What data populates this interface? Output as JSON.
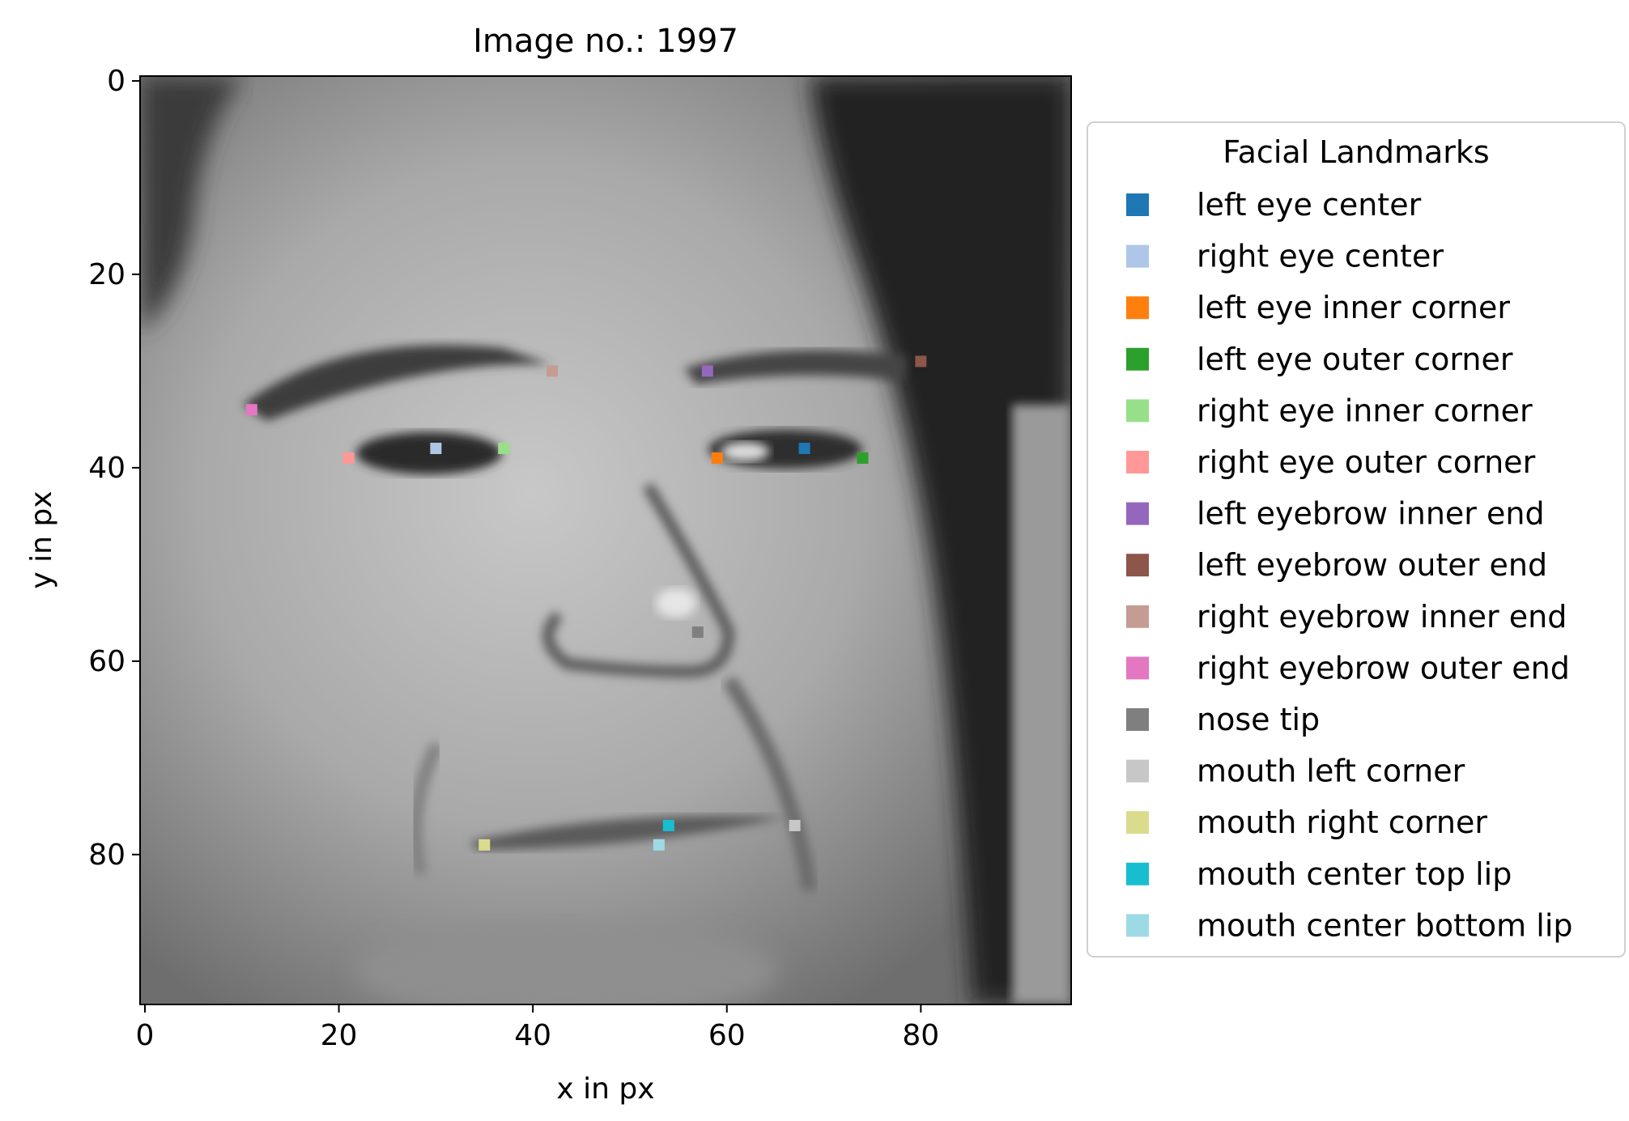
{
  "chart_data": {
    "type": "scatter",
    "title": "Image no.: 1997",
    "xlabel": "x in px",
    "ylabel": "y in px",
    "xlim": [
      -0.5,
      95.5
    ],
    "ylim": [
      95.5,
      -0.5
    ],
    "y_inverted": true,
    "x_ticks": [
      0,
      20,
      40,
      60,
      80
    ],
    "y_ticks": [
      0,
      20,
      40,
      60,
      80
    ],
    "background": "96x96 grayscale face photograph",
    "legend": {
      "title": "Facial Landmarks",
      "placement": "outside right"
    },
    "grid": false,
    "series": [
      {
        "name": "left eye center",
        "color": "#1f77b4",
        "x": 68,
        "y": 38
      },
      {
        "name": "right eye center",
        "color": "#aec7e8",
        "x": 30,
        "y": 38
      },
      {
        "name": "left eye inner corner",
        "color": "#ff7f0e",
        "x": 59,
        "y": 39
      },
      {
        "name": "left eye outer corner",
        "color": "#2ca02c",
        "x": 74,
        "y": 39
      },
      {
        "name": "right eye inner corner",
        "color": "#98df8a",
        "x": 37,
        "y": 38
      },
      {
        "name": "right eye outer corner",
        "color": "#ff9896",
        "x": 21,
        "y": 39
      },
      {
        "name": "left eyebrow inner end",
        "color": "#9467bd",
        "x": 58,
        "y": 30
      },
      {
        "name": "left eyebrow outer end",
        "color": "#8c564b",
        "x": 80,
        "y": 29
      },
      {
        "name": "right eyebrow inner end",
        "color": "#c49c94",
        "x": 42,
        "y": 30
      },
      {
        "name": "right eyebrow outer end",
        "color": "#e377c2",
        "x": 11,
        "y": 34
      },
      {
        "name": "nose tip",
        "color": "#7f7f7f",
        "x": 57,
        "y": 57
      },
      {
        "name": "mouth left corner",
        "color": "#c7c7c7",
        "x": 67,
        "y": 77
      },
      {
        "name": "mouth right corner",
        "color": "#dbdb8d",
        "x": 35,
        "y": 79
      },
      {
        "name": "mouth center top lip",
        "color": "#17becf",
        "x": 54,
        "y": 77
      },
      {
        "name": "mouth center bottom lip",
        "color": "#9edae5",
        "x": 53,
        "y": 79
      }
    ]
  }
}
